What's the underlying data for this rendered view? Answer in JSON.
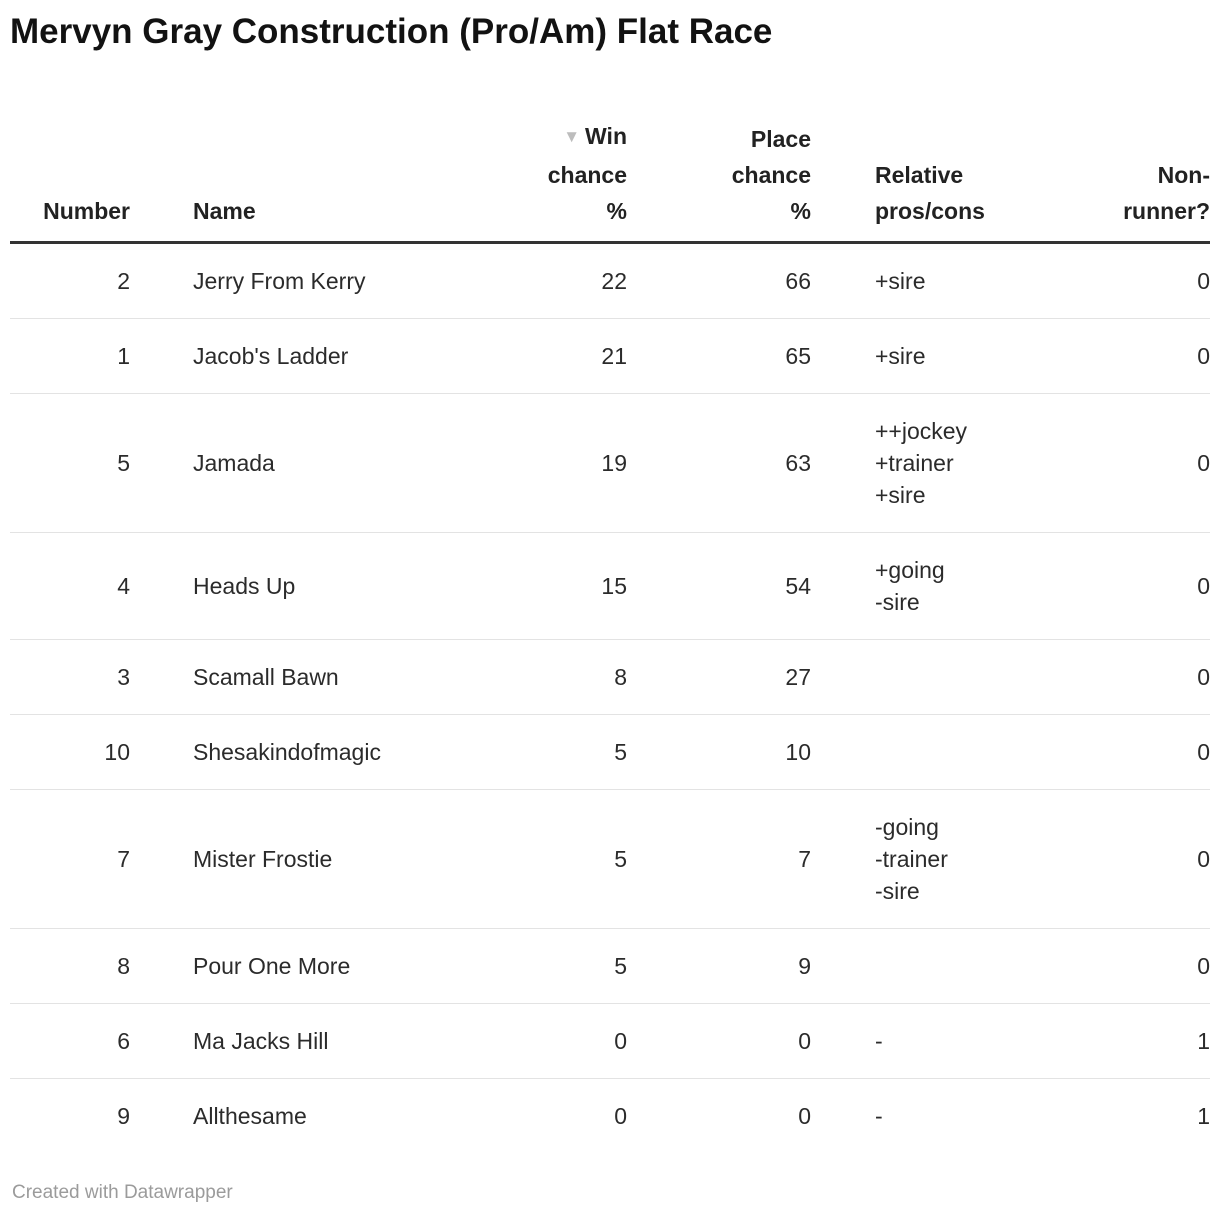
{
  "title": "Mervyn Gray Construction (Pro/Am) Flat Race",
  "colors": {
    "background": "#ffffff",
    "title_text": "#121212",
    "body_text": "#2b2b2b",
    "header_border": "#333333",
    "row_divider": "#e3e3e3",
    "sort_arrow": "#bdbdbd",
    "footer_text": "#9b9b9b"
  },
  "table": {
    "sort_icon": "▼",
    "columns": {
      "number": {
        "label": "Number"
      },
      "name": {
        "label": "Name"
      },
      "win": {
        "label": "Win\nchance\n%"
      },
      "place": {
        "label": "Place\nchance\n%"
      },
      "pros": {
        "label": "Relative\npros/cons"
      },
      "nonrunner": {
        "label": "Non-\nrunner?"
      }
    },
    "rows": [
      {
        "number": "2",
        "name": "Jerry From Kerry",
        "win": "22",
        "place": "66",
        "pros": "+sire",
        "nonrunner": "0"
      },
      {
        "number": "1",
        "name": "Jacob's Ladder",
        "win": "21",
        "place": "65",
        "pros": "+sire",
        "nonrunner": "0"
      },
      {
        "number": "5",
        "name": "Jamada",
        "win": "19",
        "place": "63",
        "pros": "++jockey\n+trainer\n+sire",
        "nonrunner": "0"
      },
      {
        "number": "4",
        "name": "Heads Up",
        "win": "15",
        "place": "54",
        "pros": "+going\n-sire",
        "nonrunner": "0"
      },
      {
        "number": "3",
        "name": "Scamall Bawn",
        "win": "8",
        "place": "27",
        "pros": "",
        "nonrunner": "0"
      },
      {
        "number": "10",
        "name": "Shesakindofmagic",
        "win": "5",
        "place": "10",
        "pros": "",
        "nonrunner": "0"
      },
      {
        "number": "7",
        "name": "Mister Frostie",
        "win": "5",
        "place": "7",
        "pros": "-going\n-trainer\n-sire",
        "nonrunner": "0"
      },
      {
        "number": "8",
        "name": "Pour One More",
        "win": "5",
        "place": "9",
        "pros": "",
        "nonrunner": "0"
      },
      {
        "number": "6",
        "name": "Ma Jacks Hill",
        "win": "0",
        "place": "0",
        "pros": "-",
        "nonrunner": "1"
      },
      {
        "number": "9",
        "name": "Allthesame",
        "win": "0",
        "place": "0",
        "pros": "-",
        "nonrunner": "1"
      }
    ]
  },
  "footer": {
    "credit": "Created with Datawrapper"
  }
}
